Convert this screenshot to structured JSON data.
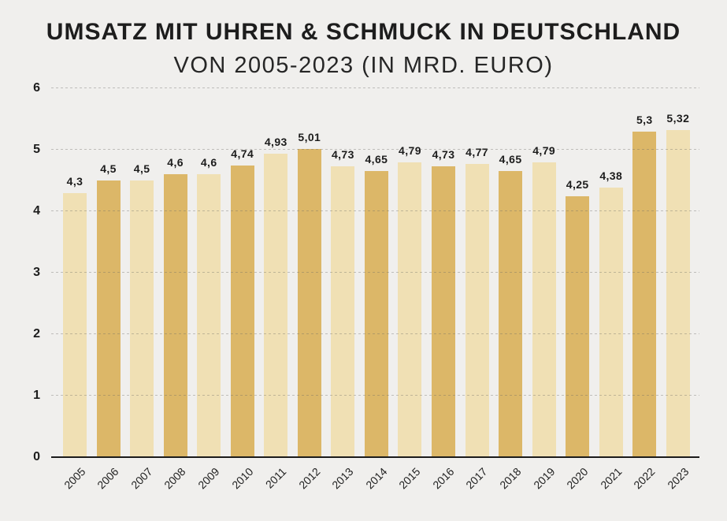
{
  "chart_data": {
    "type": "bar",
    "title": "UMSATZ MIT UHREN & SCHMUCK IN DEUTSCHLAND",
    "subtitle": "VON 2005-2023 (IN MRD. EURO)",
    "unit": "Mrd. Euro",
    "categories": [
      "2005",
      "2006",
      "2007",
      "2008",
      "2009",
      "2010",
      "2011",
      "2012",
      "2013",
      "2014",
      "2015",
      "2016",
      "2017",
      "2018",
      "2019",
      "2020",
      "2021",
      "2022",
      "2023"
    ],
    "values": [
      4.3,
      4.5,
      4.5,
      4.6,
      4.6,
      4.74,
      4.93,
      5.01,
      4.73,
      4.65,
      4.79,
      4.73,
      4.77,
      4.65,
      4.79,
      4.25,
      4.38,
      5.3,
      5.32
    ],
    "value_labels": [
      "4,3",
      "4,5",
      "4,5",
      "4,6",
      "4,6",
      "4,74",
      "4,93",
      "5,01",
      "4,73",
      "4,65",
      "4,79",
      "4,73",
      "4,77",
      "4,65",
      "4,79",
      "4,25",
      "4,38",
      "5,3",
      "5,32"
    ],
    "ylim": [
      0,
      6
    ],
    "yticks": [
      "0",
      "1",
      "2",
      "3",
      "4",
      "5",
      "6"
    ],
    "grid": "horizontal-dashed",
    "legend": "none",
    "xlabel": "",
    "ylabel": "",
    "colors": {
      "bar_light": "#f0e0b4",
      "bar_dark": "#dcb768",
      "background": "#f0efed",
      "axis": "#1b1b1b",
      "text": "#1d1d1d",
      "gridline": "#d6d4d0",
      "pattern": "alternating light/dark starting light at 2005"
    }
  }
}
